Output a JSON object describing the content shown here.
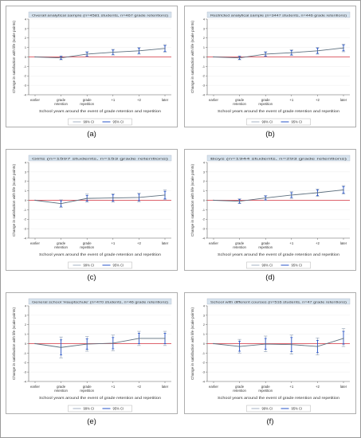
{
  "figure": {
    "panels": [
      {
        "letter": "(a)"
      },
      {
        "letter": "(b)"
      },
      {
        "letter": "(c)"
      },
      {
        "letter": "(d)"
      },
      {
        "letter": "(e)"
      },
      {
        "letter": "(f)"
      }
    ]
  },
  "chart_data": [
    {
      "type": "line",
      "title": "Overall analytical sample (n=4581 students, n=467 grade retentions)",
      "categories": [
        "earlier",
        "grade retention",
        "grade repetition",
        "+1",
        "+2",
        "later"
      ],
      "xlabel": "School years around the event of grade retention and repetition",
      "ylabel": "Change in satisfaction with life (scale points)",
      "ylim": [
        -4,
        4
      ],
      "yticks": [
        -4,
        -3,
        -2,
        -1,
        0,
        1,
        2,
        3,
        4
      ],
      "series": [
        {
          "values": [
            0,
            -0.1,
            0.3,
            0.5,
            0.65,
            0.9
          ]
        }
      ],
      "ci99": [
        [
          0,
          0
        ],
        [
          -0.3,
          0.1
        ],
        [
          0.05,
          0.55
        ],
        [
          0.2,
          0.8
        ],
        [
          0.3,
          1.0
        ],
        [
          0.5,
          1.3
        ]
      ],
      "ci95": [
        [
          0,
          0
        ],
        [
          -0.25,
          0.05
        ],
        [
          0.1,
          0.5
        ],
        [
          0.27,
          0.73
        ],
        [
          0.38,
          0.92
        ],
        [
          0.6,
          1.2
        ]
      ],
      "reference_line": 0,
      "legend": [
        "99% CI",
        "95% CI"
      ],
      "legend_position": "bottom"
    },
    {
      "type": "line",
      "title": "Restricted analytical sample (n=3447 students, n=446 grade retentions)",
      "categories": [
        "earlier",
        "grade retention",
        "grade repetition",
        "+1",
        "+2",
        "later"
      ],
      "xlabel": "School years around the event of grade retention and repetition",
      "ylabel": "Change in satisfaction with life (scale points)",
      "ylim": [
        -4,
        4
      ],
      "yticks": [
        -4,
        -3,
        -2,
        -1,
        0,
        1,
        2,
        3,
        4
      ],
      "series": [
        {
          "values": [
            0,
            -0.1,
            0.3,
            0.45,
            0.65,
            0.95
          ]
        }
      ],
      "ci99": [
        [
          0,
          0
        ],
        [
          -0.3,
          0.1
        ],
        [
          0.05,
          0.55
        ],
        [
          0.15,
          0.75
        ],
        [
          0.3,
          1.0
        ],
        [
          0.55,
          1.35
        ]
      ],
      "ci95": [
        [
          0,
          0
        ],
        [
          -0.25,
          0.05
        ],
        [
          0.1,
          0.5
        ],
        [
          0.22,
          0.68
        ],
        [
          0.38,
          0.92
        ],
        [
          0.65,
          1.25
        ]
      ],
      "reference_line": 0,
      "legend": [
        "99% CI",
        "95% CI"
      ],
      "legend_position": "bottom"
    },
    {
      "type": "line",
      "title": "Girls (n=1597 students, n=153 grade retentions)",
      "categories": [
        "earlier",
        "grade retention",
        "grade repetition",
        "+1",
        "+2",
        "later"
      ],
      "xlabel": "School years around the event of grade retention and repetition",
      "ylabel": "Change in satisfaction with life (scale points)",
      "ylim": [
        -4,
        4
      ],
      "yticks": [
        -4,
        -3,
        -2,
        -1,
        0,
        1,
        2,
        3,
        4
      ],
      "series": [
        {
          "values": [
            0,
            -0.35,
            0.2,
            0.25,
            0.3,
            0.55
          ]
        }
      ],
      "ci99": [
        [
          0,
          0
        ],
        [
          -0.75,
          0.05
        ],
        [
          -0.2,
          0.65
        ],
        [
          -0.2,
          0.7
        ],
        [
          -0.15,
          0.75
        ],
        [
          0.05,
          1.1
        ]
      ],
      "ci95": [
        [
          0,
          0
        ],
        [
          -0.65,
          -0.05
        ],
        [
          -0.1,
          0.5
        ],
        [
          -0.1,
          0.6
        ],
        [
          -0.05,
          0.65
        ],
        [
          0.15,
          0.95
        ]
      ],
      "reference_line": 0,
      "legend": [
        "99% CI",
        "95% CI"
      ],
      "legend_position": "bottom"
    },
    {
      "type": "line",
      "title": "Boys (n=1944 students, n=293 grade retentions)",
      "categories": [
        "earlier",
        "grade retention",
        "grade repetition",
        "+1",
        "+2",
        "later"
      ],
      "xlabel": "School years around the event of grade retention and repetition",
      "ylabel": "Change in satisfaction with life (scale points)",
      "ylim": [
        -4,
        4
      ],
      "yticks": [
        -4,
        -3,
        -2,
        -1,
        0,
        1,
        2,
        3,
        4
      ],
      "series": [
        {
          "values": [
            0,
            -0.1,
            0.25,
            0.55,
            0.8,
            1.1
          ]
        }
      ],
      "ci99": [
        [
          0,
          0
        ],
        [
          -0.35,
          0.15
        ],
        [
          0.0,
          0.5
        ],
        [
          0.2,
          0.9
        ],
        [
          0.4,
          1.2
        ],
        [
          0.65,
          1.55
        ]
      ],
      "ci95": [
        [
          0,
          0
        ],
        [
          -0.3,
          0.1
        ],
        [
          0.05,
          0.45
        ],
        [
          0.3,
          0.8
        ],
        [
          0.5,
          1.1
        ],
        [
          0.75,
          1.45
        ]
      ],
      "reference_line": 0,
      "legend": [
        "99% CI",
        "95% CI"
      ],
      "legend_position": "bottom"
    },
    {
      "type": "line",
      "title": "General school 'Hauptschule' (n=470 students, n=46 grade retentions)",
      "categories": [
        "earlier",
        "grade retention",
        "grade repetition",
        "+1",
        "+2",
        "later"
      ],
      "xlabel": "School years around the event of grade retention and repetition",
      "ylabel": "Change in satisfaction with life (scale points)",
      "ylim": [
        -4,
        4
      ],
      "yticks": [
        -4,
        -3,
        -2,
        -1,
        0,
        1,
        2,
        3,
        4
      ],
      "series": [
        {
          "values": [
            0,
            -0.4,
            -0.05,
            0.05,
            0.55,
            0.55
          ]
        }
      ],
      "ci99": [
        [
          0,
          0
        ],
        [
          -1.5,
          0.7
        ],
        [
          -0.8,
          0.75
        ],
        [
          -0.75,
          0.9
        ],
        [
          -0.2,
          1.3
        ],
        [
          -0.2,
          1.3
        ]
      ],
      "ci95": [
        [
          0,
          0
        ],
        [
          -1.2,
          0.4
        ],
        [
          -0.6,
          0.5
        ],
        [
          -0.55,
          0.65
        ],
        [
          0.0,
          1.1
        ],
        [
          0.0,
          1.1
        ]
      ],
      "reference_line": 0,
      "legend": [
        "99% CI",
        "95% CI"
      ],
      "legend_position": "bottom"
    },
    {
      "type": "line",
      "title": "School with different courses (n=516 students, n=47 grade retentions)",
      "categories": [
        "earlier",
        "grade retention",
        "grade repetition",
        "+1",
        "+2",
        "later"
      ],
      "xlabel": "School years around the event of grade retention and repetition",
      "ylabel": "Change in satisfaction with life (scale points)",
      "ylim": [
        -4,
        4
      ],
      "yticks": [
        -4,
        -3,
        -2,
        -1,
        0,
        1,
        2,
        3,
        4
      ],
      "series": [
        {
          "values": [
            0,
            -0.3,
            -0.05,
            -0.1,
            -0.3,
            0.55
          ]
        }
      ],
      "ci99": [
        [
          0,
          0
        ],
        [
          -1.0,
          0.45
        ],
        [
          -0.85,
          0.8
        ],
        [
          -1.1,
          0.9
        ],
        [
          -1.2,
          0.6
        ],
        [
          -0.3,
          1.6
        ]
      ],
      "ci95": [
        [
          0,
          0
        ],
        [
          -0.8,
          0.25
        ],
        [
          -0.6,
          0.55
        ],
        [
          -0.85,
          0.65
        ],
        [
          -0.95,
          0.35
        ],
        [
          -0.05,
          1.3
        ]
      ],
      "reference_line": 0,
      "legend": [
        "99% CI",
        "95% CI"
      ],
      "legend_position": "bottom"
    }
  ],
  "colors": {
    "page_bg": "#ffffff",
    "frame": "#9a9a9a",
    "panel_bg": "#ffffff",
    "plot_bg": "#ffffff",
    "title_bar": "#d7e3ee",
    "line": "#5d6f7e",
    "ci99": "#8f9fb4",
    "ci95": "#2a55c8",
    "reference": "#d5323f",
    "grid": "#eeeeee",
    "text": "#333333"
  }
}
